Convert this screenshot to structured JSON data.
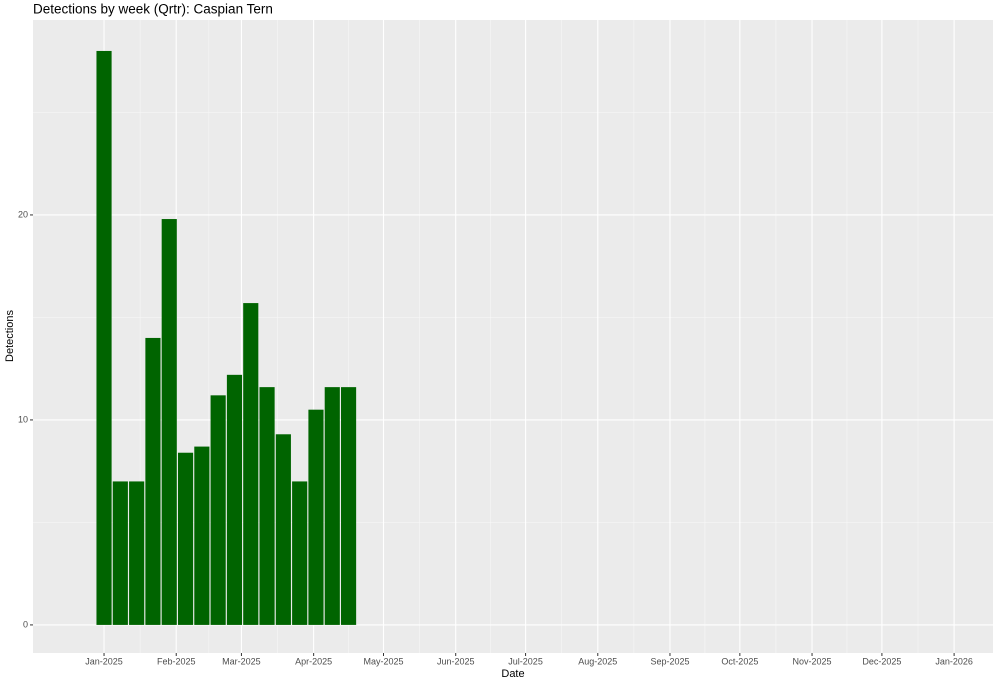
{
  "chart_data": {
    "type": "bar",
    "title": "Detections by week (Qrtr): Caspian Tern",
    "xlabel": "Date",
    "ylabel": "Detections",
    "x": [
      0,
      7,
      14,
      21,
      28,
      35,
      42,
      49,
      56,
      63,
      70,
      77,
      84,
      91,
      98,
      105
    ],
    "values": [
      28.0,
      7.0,
      7.0,
      14.0,
      19.8,
      8.4,
      8.7,
      11.2,
      12.2,
      15.7,
      11.6,
      9.3,
      7.0,
      10.5,
      11.6,
      11.6
    ],
    "color": "#006400",
    "xlim": [
      -30.5,
      381.7
    ],
    "xticks": [
      {
        "value": 0,
        "label": "Jan-2025"
      },
      {
        "value": 31,
        "label": "Feb-2025"
      },
      {
        "value": 59,
        "label": "Mar-2025"
      },
      {
        "value": 90,
        "label": "Apr-2025"
      },
      {
        "value": 120,
        "label": "May-2025"
      },
      {
        "value": 151,
        "label": "Jun-2025"
      },
      {
        "value": 181,
        "label": "Jul-2025"
      },
      {
        "value": 212,
        "label": "Aug-2025"
      },
      {
        "value": 243,
        "label": "Sep-2025"
      },
      {
        "value": 273,
        "label": "Oct-2025"
      },
      {
        "value": 304,
        "label": "Nov-2025"
      },
      {
        "value": 334,
        "label": "Dec-2025"
      },
      {
        "value": 365,
        "label": "Jan-2026"
      }
    ],
    "ylim": [
      -1.37,
      29.51
    ],
    "yticks": [
      0,
      10,
      20
    ],
    "grid": true
  }
}
